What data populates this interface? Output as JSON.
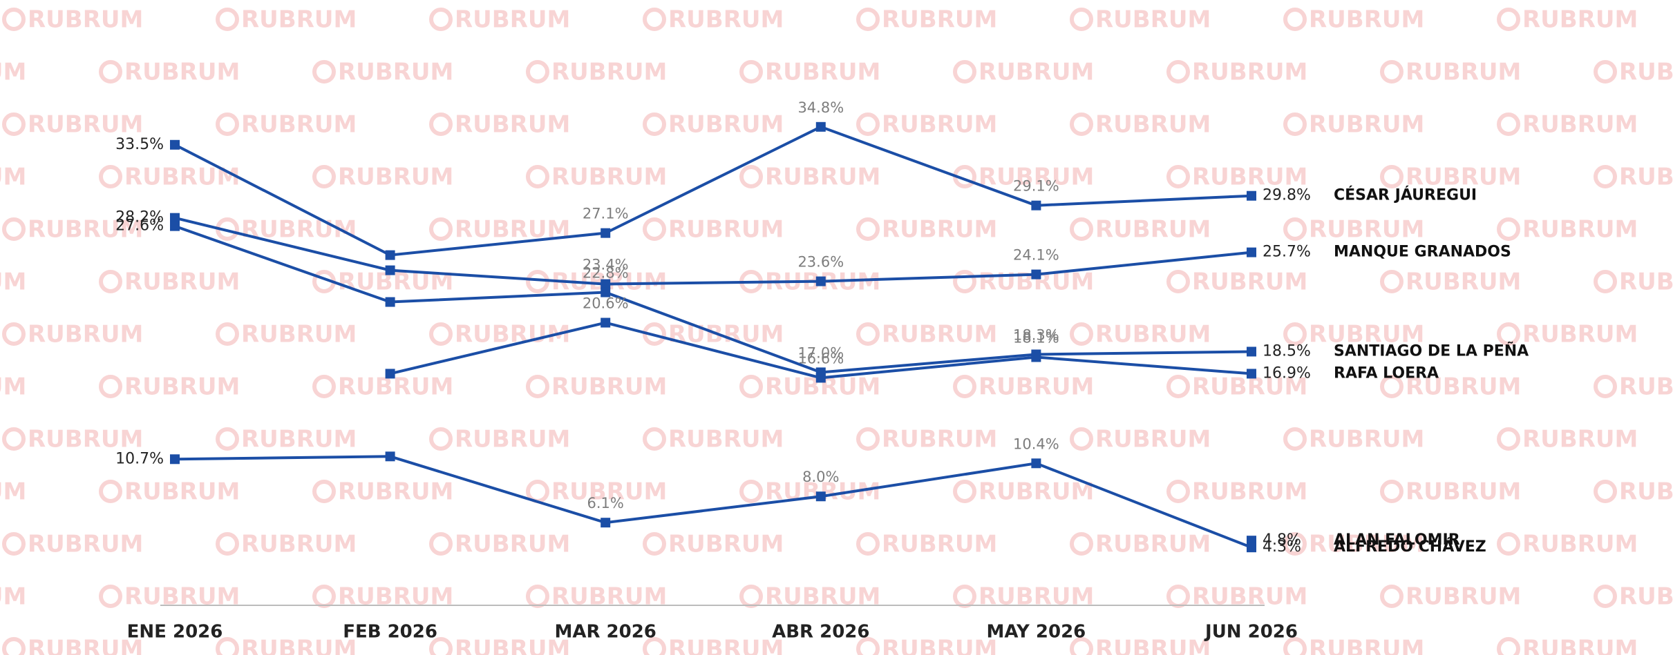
{
  "watermark": "RUBRUM",
  "chart_data": {
    "type": "line",
    "categories": [
      "ENE 2026",
      "FEB 2026",
      "MAR 2026",
      "ABR 2026",
      "MAY 2026",
      "JUN 2026"
    ],
    "ylim": [
      -3.5,
      44
    ],
    "series": [
      {
        "name": "CÉSAR JÁUREGUI",
        "color": "#1b4ea6",
        "values": [
          33.5,
          25.5,
          27.1,
          34.8,
          29.1,
          29.8
        ],
        "value_labels": [
          "33.5%",
          null,
          "27.1%",
          "34.8%",
          "29.1%",
          "29.8%"
        ]
      },
      {
        "name": "MANQUE GRANADOS",
        "color": "#1b4ea6",
        "values": [
          28.2,
          24.4,
          23.4,
          23.6,
          24.1,
          25.7
        ],
        "value_labels": [
          "28.2%",
          null,
          "23.4%",
          "23.6%",
          "24.1%",
          "25.7%"
        ]
      },
      {
        "name": "SANTIAGO DE LA PEÑA",
        "color": "#1b4ea6",
        "values": [
          27.6,
          22.1,
          22.8,
          17.0,
          18.3,
          18.5
        ],
        "value_labels": [
          "27.6%",
          null,
          "22.8%",
          "17.0%",
          "18.3%",
          "18.5%"
        ]
      },
      {
        "name": "RAFA LOERA",
        "color": "#1b4ea6",
        "values": [
          null,
          16.9,
          20.6,
          16.6,
          18.1,
          16.9
        ],
        "value_labels": [
          null,
          null,
          "20.6%",
          "16.6%",
          "18.1%",
          "16.9%"
        ]
      },
      {
        "name": "ALAN FALOMIR",
        "color": "#1b4ea6",
        "values": [
          null,
          null,
          null,
          null,
          null,
          4.8
        ],
        "value_labels": [
          null,
          null,
          null,
          null,
          null,
          "4.8%"
        ]
      },
      {
        "name": "ALFREDO CHÁVEZ",
        "color": "#1b4ea6",
        "values": [
          10.7,
          10.9,
          6.1,
          8.0,
          10.4,
          4.3
        ],
        "value_labels": [
          "10.7%",
          null,
          "6.1%",
          "8.0%",
          "10.4%",
          "4.3%"
        ]
      }
    ]
  }
}
